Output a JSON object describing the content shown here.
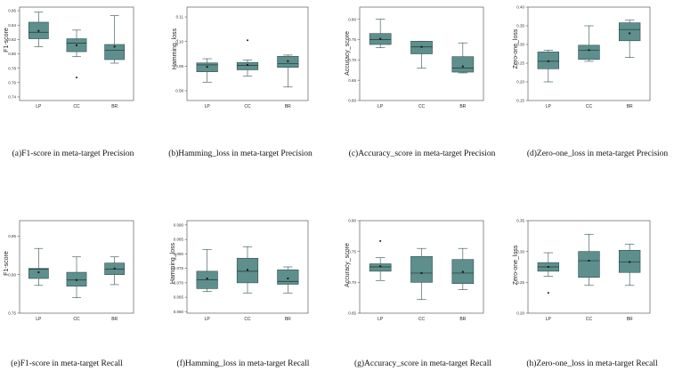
{
  "colors": {
    "box_fill": "#5e8f8d",
    "box_stroke": "#2f4f4e",
    "axis": "#444444"
  },
  "chart_data": [
    {
      "type": "box",
      "title": "(a)F1-score in meta-target Precision",
      "ylabel": "F1-score",
      "categories": [
        "LP",
        "CC",
        "BR"
      ],
      "ylim": [
        0.735,
        0.865
      ],
      "yticks": [
        0.74,
        0.76,
        0.78,
        0.8,
        0.82,
        0.84,
        0.86
      ],
      "ytick_labels": [
        "0.74",
        "0.76",
        "0.78",
        "0.80",
        "0.82",
        "0.84",
        "0.86"
      ],
      "boxes": [
        {
          "min": 0.81,
          "q1": 0.821,
          "median": 0.83,
          "q3": 0.844,
          "max": 0.858,
          "mean": 0.832,
          "outliers": []
        },
        {
          "min": 0.796,
          "q1": 0.803,
          "median": 0.815,
          "q3": 0.821,
          "max": 0.833,
          "mean": 0.812,
          "outliers": [
            0.767
          ]
        },
        {
          "min": 0.787,
          "q1": 0.792,
          "median": 0.805,
          "q3": 0.813,
          "max": 0.853,
          "mean": 0.81,
          "outliers": []
        }
      ]
    },
    {
      "type": "box",
      "title": "(b)Hamming_loss in meta-target Precision",
      "ylabel": "Hamming_loss",
      "categories": [
        "LP",
        "CC",
        "BR"
      ],
      "ylim": [
        0.076,
        0.114
      ],
      "yticks": [
        0.08,
        0.09,
        0.1,
        0.11
      ],
      "ytick_labels": [
        "0.08",
        "0.09",
        "0.10",
        "0.11"
      ],
      "boxes": [
        {
          "min": 0.0835,
          "q1": 0.0877,
          "median": 0.0905,
          "q3": 0.0913,
          "max": 0.093,
          "mean": 0.0897,
          "outliers": []
        },
        {
          "min": 0.086,
          "q1": 0.0885,
          "median": 0.0903,
          "q3": 0.0915,
          "max": 0.0925,
          "mean": 0.0905,
          "outliers": [
            0.1005
          ]
        },
        {
          "min": 0.0815,
          "q1": 0.0895,
          "median": 0.091,
          "q3": 0.094,
          "max": 0.0945,
          "mean": 0.092,
          "outliers": []
        }
      ]
    },
    {
      "type": "box",
      "title": "(c)Accuracy_score in meta-target Precision",
      "ylabel": "Accuracy_score",
      "categories": [
        "LP",
        "CC",
        "BR"
      ],
      "ylim": [
        0.6,
        0.83
      ],
      "yticks": [
        0.6,
        0.65,
        0.7,
        0.75,
        0.8
      ],
      "ytick_labels": [
        "0.60",
        "0.65",
        "0.70",
        "0.75",
        "0.80"
      ],
      "boxes": [
        {
          "min": 0.73,
          "q1": 0.738,
          "median": 0.75,
          "q3": 0.765,
          "max": 0.8,
          "mean": 0.752,
          "outliers": []
        },
        {
          "min": 0.68,
          "q1": 0.715,
          "median": 0.732,
          "q3": 0.746,
          "max": 0.746,
          "mean": 0.732,
          "outliers": []
        },
        {
          "min": 0.668,
          "q1": 0.67,
          "median": 0.68,
          "q3": 0.708,
          "max": 0.742,
          "mean": 0.684,
          "outliers": []
        }
      ]
    },
    {
      "type": "box",
      "title": "(d)Zero-one_loss in meta-target Precision",
      "ylabel": "Zero-one_loss",
      "categories": [
        "LP",
        "CC",
        "BR"
      ],
      "ylim": [
        0.15,
        0.4
      ],
      "yticks": [
        0.15,
        0.2,
        0.25,
        0.3,
        0.35,
        0.4
      ],
      "ytick_labels": [
        "0.15",
        "0.20",
        "0.25",
        "0.30",
        "0.35",
        "0.40"
      ],
      "boxes": [
        {
          "min": 0.2,
          "q1": 0.235,
          "median": 0.255,
          "q3": 0.28,
          "max": 0.285,
          "mean": 0.255,
          "outliers": []
        },
        {
          "min": 0.255,
          "q1": 0.26,
          "median": 0.285,
          "q3": 0.298,
          "max": 0.35,
          "mean": 0.285,
          "outliers": []
        },
        {
          "min": 0.265,
          "q1": 0.31,
          "median": 0.34,
          "q3": 0.358,
          "max": 0.365,
          "mean": 0.33,
          "outliers": []
        }
      ]
    },
    {
      "type": "box",
      "title": "(e)F1-score in meta-target Recall",
      "ylabel": "F1-score",
      "categories": [
        "LP",
        "CC",
        "BR"
      ],
      "ylim": [
        0.75,
        0.87
      ],
      "yticks": [
        0.75,
        0.8,
        0.85
      ],
      "ytick_labels": [
        "0.75",
        "0.80",
        "0.85"
      ],
      "boxes": [
        {
          "min": 0.786,
          "q1": 0.795,
          "median": 0.807,
          "q3": 0.808,
          "max": 0.834,
          "mean": 0.803,
          "outliers": []
        },
        {
          "min": 0.77,
          "q1": 0.785,
          "median": 0.793,
          "q3": 0.803,
          "max": 0.823,
          "mean": 0.793,
          "outliers": []
        },
        {
          "min": 0.787,
          "q1": 0.8,
          "median": 0.807,
          "q3": 0.815,
          "max": 0.823,
          "mean": 0.808,
          "outliers": []
        }
      ]
    },
    {
      "type": "box",
      "title": "(f)Hamming_loss in meta-target Recall",
      "ylabel": "Hamming_loss",
      "categories": [
        "LP",
        "CC",
        "BR"
      ],
      "ylim": [
        0.0595,
        0.0915
      ],
      "yticks": [
        0.06,
        0.065,
        0.07,
        0.075,
        0.08,
        0.085,
        0.09
      ],
      "ytick_labels": [
        "0.060",
        "0.065",
        "0.070",
        "0.075",
        "0.080",
        "0.085",
        "0.090"
      ],
      "boxes": [
        {
          "min": 0.067,
          "q1": 0.068,
          "median": 0.071,
          "q3": 0.074,
          "max": 0.0815,
          "mean": 0.0715,
          "outliers": []
        },
        {
          "min": 0.0665,
          "q1": 0.07,
          "median": 0.074,
          "q3": 0.0785,
          "max": 0.0825,
          "mean": 0.0745,
          "outliers": []
        },
        {
          "min": 0.0665,
          "q1": 0.0695,
          "median": 0.0705,
          "q3": 0.0745,
          "max": 0.0755,
          "mean": 0.0715,
          "outliers": []
        }
      ]
    },
    {
      "type": "box",
      "title": "(g)Accuracy_score in meta-target Recall",
      "ylabel": "Accuracy_score",
      "categories": [
        "LP",
        "CC",
        "BR"
      ],
      "ylim": [
        0.65,
        0.8
      ],
      "yticks": [
        0.65,
        0.7,
        0.75,
        0.8
      ],
      "ytick_labels": [
        "0.65",
        "0.70",
        "0.75",
        "0.80"
      ],
      "boxes": [
        {
          "min": 0.703,
          "q1": 0.718,
          "median": 0.725,
          "q3": 0.73,
          "max": 0.74,
          "mean": 0.726,
          "outliers": [
            0.767
          ]
        },
        {
          "min": 0.672,
          "q1": 0.7,
          "median": 0.715,
          "q3": 0.742,
          "max": 0.755,
          "mean": 0.715,
          "outliers": []
        },
        {
          "min": 0.688,
          "q1": 0.698,
          "median": 0.715,
          "q3": 0.737,
          "max": 0.755,
          "mean": 0.717,
          "outliers": []
        }
      ]
    },
    {
      "type": "box",
      "title": "(h)Zero-one_loss in meta-target Recall",
      "ylabel": "Zero-one_loss",
      "categories": [
        "LP",
        "CC",
        "BR"
      ],
      "ylim": [
        0.2,
        0.35
      ],
      "yticks": [
        0.2,
        0.25,
        0.3,
        0.35
      ],
      "ytick_labels": [
        "0.20",
        "0.25",
        "0.30",
        "0.35"
      ],
      "boxes": [
        {
          "min": 0.26,
          "q1": 0.268,
          "median": 0.275,
          "q3": 0.282,
          "max": 0.298,
          "mean": 0.275,
          "outliers": [
            0.233
          ]
        },
        {
          "min": 0.245,
          "q1": 0.258,
          "median": 0.285,
          "q3": 0.3,
          "max": 0.328,
          "mean": 0.285,
          "outliers": []
        },
        {
          "min": 0.245,
          "q1": 0.266,
          "median": 0.283,
          "q3": 0.302,
          "max": 0.312,
          "mean": 0.283,
          "outliers": []
        }
      ]
    }
  ]
}
